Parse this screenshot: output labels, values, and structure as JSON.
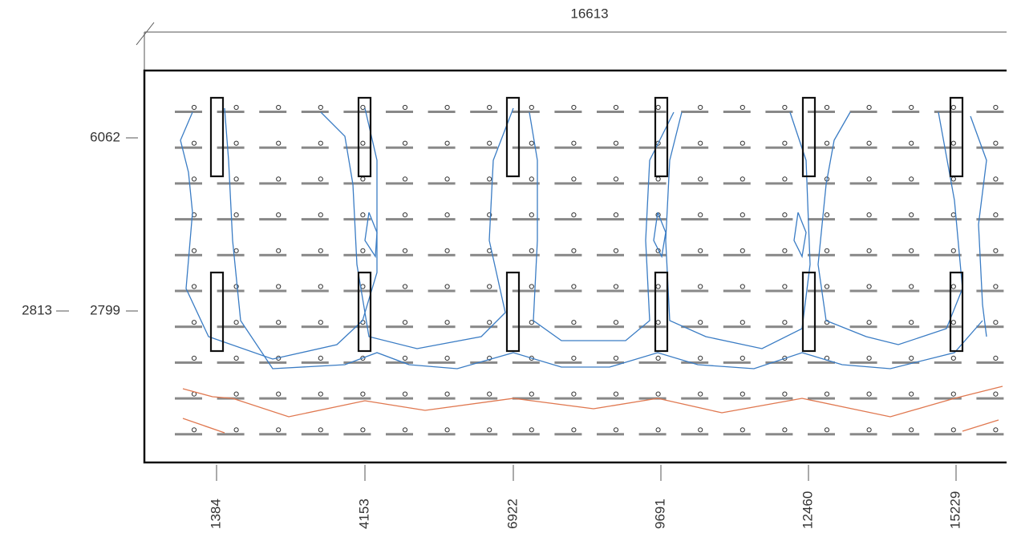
{
  "dimensions": {
    "top": "16613",
    "left": [
      "6062",
      "2813",
      "2799"
    ],
    "bottom": [
      "1384",
      "4153",
      "6922",
      "9691",
      "12460",
      "15229"
    ]
  }
}
